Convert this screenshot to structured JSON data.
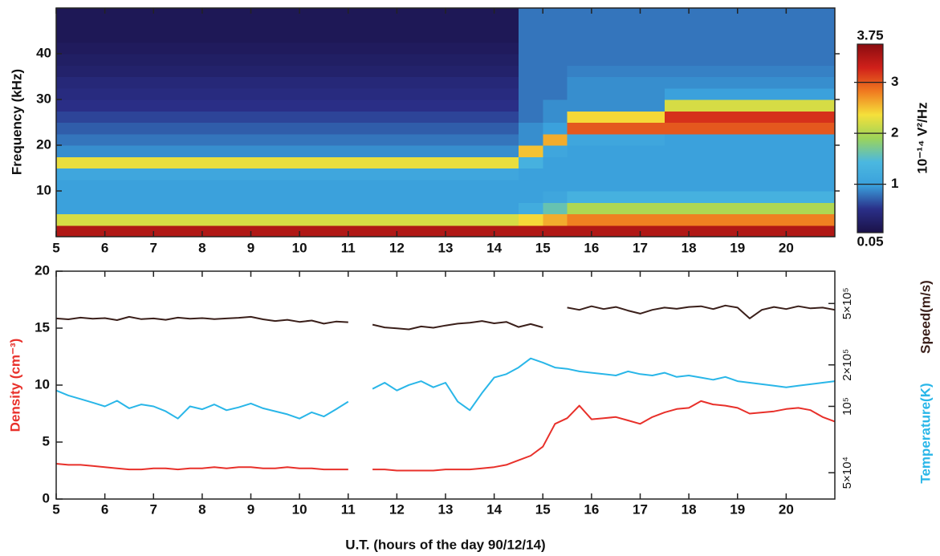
{
  "chart_data": [
    {
      "type": "heatmap",
      "ylabel": "Frequency (kHz)",
      "zlabel": "10⁻¹⁴ V²/Hz",
      "xbins": [
        5,
        5.5,
        6,
        6.5,
        7,
        7.5,
        8,
        8.5,
        9,
        9.5,
        10,
        10.5,
        11,
        11.5,
        12,
        12.5,
        13,
        13.5,
        14,
        14.5,
        15,
        15.5,
        16,
        16.5,
        17,
        17.5,
        18,
        18.5,
        19,
        19.5,
        20,
        20.5,
        21
      ],
      "ybins": [
        0,
        2.5,
        5,
        7.5,
        10,
        12.5,
        15,
        17.5,
        20,
        22.5,
        25,
        27.5,
        30,
        32.5,
        35,
        37.5,
        40,
        42.5,
        45,
        47.5,
        50
      ],
      "z": [
        [
          3.5,
          3.5,
          3.5,
          3.5,
          3.5,
          3.5,
          3.5,
          3.5,
          3.5,
          3.5,
          3.5,
          3.5,
          3.5,
          3.5,
          3.5,
          3.5,
          3.5,
          3.5,
          3.5,
          3.5,
          3.5,
          3.5,
          3.5,
          3.5,
          3.5,
          3.5,
          3.5,
          3.5,
          3.5,
          3.5,
          3.5,
          3.5
        ],
        [
          2.2,
          2.2,
          2.2,
          2.2,
          2.2,
          2.2,
          2.2,
          2.2,
          2.2,
          2.2,
          2.2,
          2.2,
          2.2,
          2.2,
          2.2,
          2.2,
          2.2,
          2.2,
          2.2,
          2.4,
          2.6,
          2.8,
          2.8,
          2.8,
          2.8,
          2.8,
          2.8,
          2.8,
          2.8,
          2.8,
          2.8,
          2.8
        ],
        [
          1,
          1,
          1,
          1,
          1,
          1,
          1,
          1,
          1,
          1,
          1,
          1,
          1,
          1,
          1,
          1,
          1,
          1,
          1,
          1.2,
          1.6,
          2,
          2,
          2,
          2,
          2,
          2,
          2,
          2,
          2,
          2,
          2
        ],
        [
          1,
          1,
          1,
          1,
          1,
          1,
          1,
          1,
          1,
          1,
          1,
          1,
          1,
          1,
          1,
          1,
          1,
          1,
          1,
          1,
          1.1,
          1.3,
          1.3,
          1.3,
          1.3,
          1.3,
          1.3,
          1.3,
          1.3,
          1.3,
          1.3,
          1.3
        ],
        [
          1,
          1,
          1,
          1,
          1,
          1,
          1,
          1,
          1,
          1,
          1,
          1,
          1,
          1,
          1,
          1,
          1,
          1,
          1,
          1,
          1,
          1,
          1,
          1,
          1,
          1,
          1,
          1,
          1,
          1,
          1,
          1
        ],
        [
          1.1,
          1.1,
          1.1,
          1.1,
          1.1,
          1.1,
          1.1,
          1.1,
          1.1,
          1.1,
          1.1,
          1.1,
          1.1,
          1.1,
          1.1,
          1.1,
          1.1,
          1.1,
          1.1,
          1,
          1,
          1,
          1,
          1,
          1,
          1,
          1,
          1,
          1,
          1,
          1,
          1
        ],
        [
          2.3,
          2.3,
          2.3,
          2.3,
          2.3,
          2.3,
          2.3,
          2.3,
          2.3,
          2.3,
          2.3,
          2.3,
          2.3,
          2.3,
          2.3,
          2.3,
          2.3,
          2.3,
          2.3,
          1.3,
          1,
          1,
          1,
          1,
          1,
          1,
          1,
          1,
          1,
          1,
          1,
          1
        ],
        [
          0.9,
          0.9,
          0.9,
          0.9,
          0.9,
          0.9,
          0.9,
          0.9,
          0.9,
          0.9,
          0.9,
          0.9,
          0.9,
          0.9,
          0.9,
          0.9,
          0.9,
          0.9,
          0.9,
          2.5,
          1.1,
          1,
          1,
          1,
          1,
          1,
          1,
          1,
          1,
          1,
          1,
          1
        ],
        [
          0.8,
          0.8,
          0.8,
          0.8,
          0.8,
          0.8,
          0.8,
          0.8,
          0.8,
          0.8,
          0.8,
          0.8,
          0.8,
          0.8,
          0.8,
          0.8,
          0.8,
          0.8,
          0.8,
          0.9,
          2.6,
          1.1,
          1.1,
          1.1,
          1.1,
          1,
          1,
          1,
          1,
          1,
          1,
          1
        ],
        [
          0.7,
          0.7,
          0.7,
          0.7,
          0.7,
          0.7,
          0.7,
          0.7,
          0.7,
          0.7,
          0.7,
          0.7,
          0.7,
          0.7,
          0.7,
          0.7,
          0.7,
          0.7,
          0.7,
          0.9,
          1,
          3,
          3,
          3,
          3,
          3,
          3,
          3,
          3,
          3,
          3,
          3
        ],
        [
          0.6,
          0.6,
          0.6,
          0.6,
          0.6,
          0.6,
          0.6,
          0.6,
          0.6,
          0.6,
          0.6,
          0.6,
          0.6,
          0.6,
          0.6,
          0.6,
          0.6,
          0.6,
          0.6,
          0.8,
          0.9,
          2.4,
          2.4,
          2.4,
          2.4,
          3.2,
          3.2,
          3.2,
          3.2,
          3.2,
          3.2,
          3.2
        ],
        [
          0.5,
          0.5,
          0.5,
          0.5,
          0.5,
          0.5,
          0.5,
          0.5,
          0.5,
          0.5,
          0.5,
          0.5,
          0.5,
          0.5,
          0.5,
          0.5,
          0.5,
          0.5,
          0.5,
          0.8,
          0.9,
          0.9,
          0.9,
          0.9,
          0.9,
          2.2,
          2.2,
          2.2,
          2.2,
          2.2,
          2.2,
          2.2
        ],
        [
          0.45,
          0.45,
          0.45,
          0.45,
          0.45,
          0.45,
          0.45,
          0.45,
          0.45,
          0.45,
          0.45,
          0.45,
          0.45,
          0.45,
          0.45,
          0.45,
          0.45,
          0.45,
          0.45,
          0.8,
          0.8,
          0.9,
          0.9,
          0.9,
          0.9,
          1,
          1,
          1,
          1,
          1,
          1,
          1
        ],
        [
          0.4,
          0.4,
          0.4,
          0.4,
          0.4,
          0.4,
          0.4,
          0.4,
          0.4,
          0.4,
          0.4,
          0.4,
          0.4,
          0.4,
          0.4,
          0.4,
          0.4,
          0.4,
          0.4,
          0.8,
          0.8,
          0.9,
          0.9,
          0.9,
          0.9,
          0.9,
          0.9,
          0.9,
          0.9,
          0.9,
          0.9,
          0.9
        ],
        [
          0.3,
          0.3,
          0.3,
          0.3,
          0.3,
          0.3,
          0.3,
          0.3,
          0.3,
          0.3,
          0.3,
          0.3,
          0.3,
          0.3,
          0.3,
          0.3,
          0.3,
          0.3,
          0.3,
          0.8,
          0.8,
          0.85,
          0.85,
          0.85,
          0.85,
          0.85,
          0.85,
          0.85,
          0.85,
          0.85,
          0.85,
          0.85
        ],
        [
          0.25,
          0.25,
          0.25,
          0.25,
          0.25,
          0.25,
          0.25,
          0.25,
          0.25,
          0.25,
          0.25,
          0.25,
          0.25,
          0.25,
          0.25,
          0.25,
          0.25,
          0.25,
          0.25,
          0.8,
          0.8,
          0.8,
          0.8,
          0.8,
          0.8,
          0.8,
          0.8,
          0.8,
          0.8,
          0.8,
          0.8,
          0.8
        ],
        [
          0.2,
          0.2,
          0.2,
          0.2,
          0.2,
          0.2,
          0.2,
          0.2,
          0.2,
          0.2,
          0.2,
          0.2,
          0.2,
          0.2,
          0.2,
          0.2,
          0.2,
          0.2,
          0.2,
          0.8,
          0.8,
          0.8,
          0.8,
          0.8,
          0.8,
          0.8,
          0.8,
          0.8,
          0.8,
          0.8,
          0.8,
          0.8
        ],
        [
          0.15,
          0.15,
          0.15,
          0.15,
          0.15,
          0.15,
          0.15,
          0.15,
          0.15,
          0.15,
          0.15,
          0.15,
          0.15,
          0.15,
          0.15,
          0.15,
          0.15,
          0.15,
          0.15,
          0.8,
          0.8,
          0.8,
          0.8,
          0.8,
          0.8,
          0.8,
          0.8,
          0.8,
          0.8,
          0.8,
          0.8,
          0.8
        ],
        [
          0.15,
          0.15,
          0.15,
          0.15,
          0.15,
          0.15,
          0.15,
          0.15,
          0.15,
          0.15,
          0.15,
          0.15,
          0.15,
          0.15,
          0.15,
          0.15,
          0.15,
          0.15,
          0.15,
          0.8,
          0.8,
          0.8,
          0.8,
          0.8,
          0.8,
          0.8,
          0.8,
          0.8,
          0.8,
          0.8,
          0.8,
          0.8
        ],
        [
          0.15,
          0.15,
          0.15,
          0.15,
          0.15,
          0.15,
          0.15,
          0.15,
          0.15,
          0.15,
          0.15,
          0.15,
          0.15,
          0.15,
          0.15,
          0.15,
          0.15,
          0.15,
          0.15,
          0.8,
          0.8,
          0.8,
          0.8,
          0.8,
          0.8,
          0.8,
          0.8,
          0.8,
          0.8,
          0.8,
          0.8,
          0.8
        ]
      ],
      "xlim": [
        5,
        21
      ],
      "xticks": [
        5,
        6,
        7,
        8,
        9,
        10,
        11,
        12,
        13,
        14,
        15,
        16,
        17,
        18,
        19,
        20
      ],
      "ylim": [
        0,
        50
      ],
      "yticks": [
        10,
        20,
        30,
        40
      ],
      "zlim": [
        0.05,
        3.75
      ],
      "zticks": [
        0.05,
        1,
        2,
        3,
        3.75
      ],
      "colormap": [
        "#1b1248",
        "#2a2f88",
        "#3aa0dc",
        "#4bb8e0",
        "#9cd45a",
        "#f5e03a",
        "#f07a20",
        "#d0201a",
        "#8a0c10"
      ]
    },
    {
      "type": "line",
      "xlabel": "U.T. (hours of the day 90/12/14)",
      "x": [
        5,
        5.25,
        5.5,
        5.75,
        6,
        6.25,
        6.5,
        6.75,
        7,
        7.25,
        7.5,
        7.75,
        8,
        8.25,
        8.5,
        8.75,
        9,
        9.25,
        9.5,
        9.75,
        10,
        10.25,
        10.5,
        10.75,
        11,
        11.25,
        11.5,
        11.75,
        12,
        12.25,
        12.5,
        12.75,
        13,
        13.25,
        13.5,
        13.75,
        14,
        14.25,
        14.5,
        14.75,
        15,
        15.25,
        15.5,
        15.75,
        16,
        16.25,
        16.5,
        16.75,
        17,
        17.25,
        17.5,
        17.75,
        18,
        18.25,
        18.5,
        18.75,
        19,
        19.25,
        19.5,
        19.75,
        20,
        20.25,
        20.5,
        20.75,
        21
      ],
      "xlim": [
        5,
        21
      ],
      "xticks": [
        5,
        6,
        7,
        8,
        9,
        10,
        11,
        12,
        13,
        14,
        15,
        16,
        17,
        18,
        19,
        20
      ],
      "ylim": [
        0,
        20
      ],
      "yticks": [
        0,
        5,
        10,
        15,
        20
      ],
      "y2lim": [
        38000,
        410000
      ],
      "y2scale": "log",
      "y2ticks": [
        {
          "value": 50000,
          "label": "5×10⁴"
        },
        {
          "value": 100000,
          "label": "10⁵"
        }
      ],
      "y3lim": [
        27000,
        810000
      ],
      "y3scale": "log",
      "y3ticks": [
        {
          "value": 200000,
          "label": "2×10⁵"
        },
        {
          "value": 500000,
          "label": "5×10⁵"
        }
      ],
      "series": [
        {
          "name": "Density (cm⁻³)",
          "color": "#e8302a",
          "values": [
            3.1,
            3.0,
            3.0,
            2.9,
            2.8,
            2.7,
            2.6,
            2.6,
            2.7,
            2.7,
            2.6,
            2.7,
            2.7,
            2.8,
            2.7,
            2.8,
            2.8,
            2.7,
            2.7,
            2.8,
            2.7,
            2.7,
            2.6,
            2.6,
            2.6,
            null,
            2.6,
            2.6,
            2.5,
            2.5,
            2.5,
            2.5,
            2.6,
            2.6,
            2.6,
            2.7,
            2.8,
            3.0,
            3.4,
            3.8,
            4.6,
            6.6,
            7.1,
            8.2,
            7.0,
            7.1,
            7.2,
            6.9,
            6.6,
            7.2,
            7.6,
            7.9,
            8.0,
            8.6,
            8.3,
            8.2,
            8.0,
            7.5,
            7.6,
            7.7,
            7.9,
            8.0,
            7.8,
            7.2,
            6.8
          ]
        },
        {
          "name": "Temperature(K)",
          "color": "#29b6e8",
          "axis": "y2",
          "values": [
            118000,
            112000,
            108000,
            104000,
            100000,
            106000,
            98000,
            102000,
            100000,
            95000,
            88000,
            100000,
            97000,
            102000,
            96000,
            99000,
            103000,
            98000,
            95000,
            92000,
            88000,
            94000,
            90000,
            97000,
            105000,
            null,
            120000,
            128000,
            118000,
            125000,
            130000,
            122000,
            128000,
            105000,
            96000,
            115000,
            135000,
            140000,
            150000,
            165000,
            158000,
            150000,
            148000,
            144000,
            142000,
            140000,
            138000,
            144000,
            140000,
            138000,
            142000,
            136000,
            138000,
            135000,
            132000,
            136000,
            130000,
            128000,
            126000,
            124000,
            122000,
            124000,
            126000,
            128000,
            130000
          ]
        },
        {
          "name": "Speed(m/s)",
          "color": "#3a1f1a",
          "axis": "y3",
          "values": [
            400000,
            395000,
            405000,
            398000,
            402000,
            390000,
            410000,
            396000,
            400000,
            392000,
            405000,
            398000,
            402000,
            396000,
            400000,
            404000,
            410000,
            395000,
            385000,
            392000,
            380000,
            388000,
            370000,
            382000,
            378000,
            null,
            365000,
            350000,
            345000,
            340000,
            355000,
            348000,
            360000,
            370000,
            375000,
            385000,
            372000,
            380000,
            352000,
            368000,
            350000,
            null,
            470000,
            455000,
            480000,
            460000,
            475000,
            450000,
            430000,
            455000,
            470000,
            462000,
            475000,
            480000,
            460000,
            485000,
            470000,
            400000,
            455000,
            475000,
            460000,
            480000,
            465000,
            470000,
            455000
          ]
        }
      ]
    }
  ]
}
